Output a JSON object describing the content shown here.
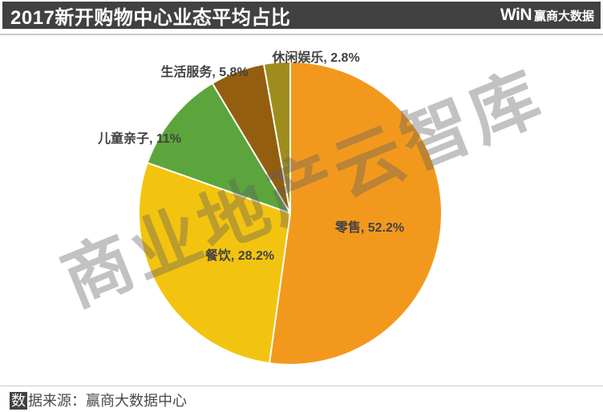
{
  "header": {
    "title": "2017新开购物中心业态平均占比",
    "logo_mark": "WiN",
    "logo_text": "赢商大数据"
  },
  "watermark": {
    "text": "商业地产云智库"
  },
  "footer": {
    "badge_char": "数",
    "rest_text": "据来源：赢商大数据中心",
    "full_text": "数据来源：赢商大数据中心"
  },
  "chart_data": {
    "type": "pie",
    "title": "2017新开购物中心业态平均占比",
    "unit": "percent",
    "start_angle_deg": 0,
    "direction": "clockwise",
    "legend": "none",
    "total": 100,
    "slices": [
      {
        "label": "零售",
        "value": 52.2,
        "display": "零售, 52.2%",
        "color": "#F2991D",
        "label_placement": "inside"
      },
      {
        "label": "餐饮",
        "value": 28.2,
        "display": "餐饮, 28.2%",
        "color": "#F3C40F",
        "label_placement": "inside"
      },
      {
        "label": "儿童亲子",
        "value": 11,
        "display": "儿童亲子, 11%",
        "color": "#5BA53C",
        "label_placement": "outside"
      },
      {
        "label": "生活服务",
        "value": 5.8,
        "display": "生活服务, 5.8%",
        "color": "#935E10",
        "label_placement": "outside"
      },
      {
        "label": "休闲娱乐",
        "value": 2.8,
        "display": "休闲娱乐, 2.8%",
        "color": "#9E8D1C",
        "label_placement": "outside"
      }
    ],
    "colors": {
      "separator": "#FFFFFF",
      "label_text": "#424242",
      "header_bg": "#414141"
    }
  }
}
